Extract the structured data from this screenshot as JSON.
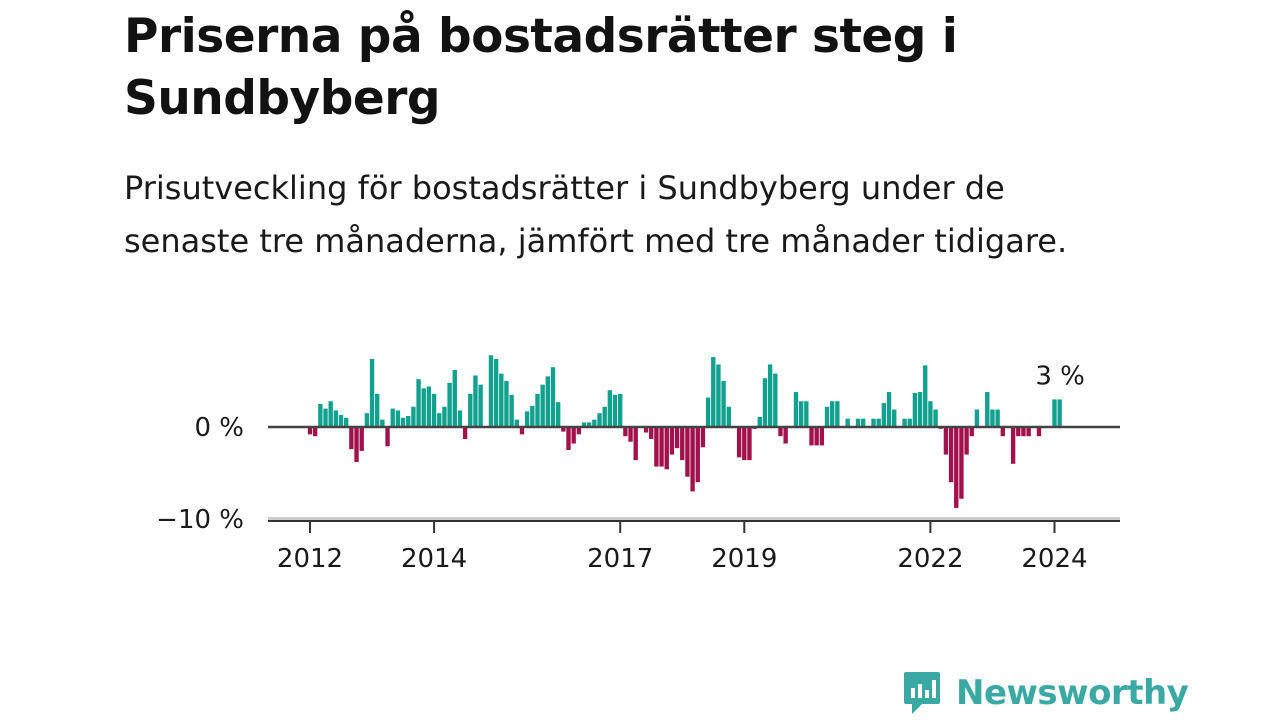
{
  "header": {
    "title": "Priserna på bostadsrätter steg i Sundbyberg",
    "subtitle": "Prisutveckling för bostadsrätter i Sundbyberg under de senaste tre månaderna, jämfört med tre månader tidigare."
  },
  "brand": {
    "name": "Newsworthy",
    "color": "#3aa9a4"
  },
  "chart_data": {
    "type": "bar",
    "title": "Priserna på bostadsrätter steg i Sundbyberg",
    "subtitle": "Prisutveckling för bostadsrätter i Sundbyberg under de senaste tre månaderna, jämfört med tre månader tidigare.",
    "xlabel": "",
    "ylabel": "",
    "x_start": "2012-01",
    "x_ticks": [
      "2012",
      "2014",
      "2017",
      "2019",
      "2022",
      "2024"
    ],
    "y_ticks": [
      0,
      -10
    ],
    "y_tick_labels": [
      "0 %",
      "−10 %"
    ],
    "ylim": [
      -10.3,
      8.5
    ],
    "colors": {
      "positive": "#12a08f",
      "negative": "#a2114b",
      "zero_line": "#444444",
      "baseline": "#cccccc"
    },
    "last_value_label": "3 %",
    "values": [
      -0.8,
      -1,
      2.5,
      2,
      2.8,
      1.8,
      1.3,
      1,
      -2.4,
      -3.8,
      -2.6,
      1.5,
      7.4,
      3.6,
      0.8,
      -2.1,
      2,
      1.8,
      1,
      1.2,
      2.2,
      5.2,
      4.2,
      4.4,
      3.6,
      1.5,
      2.2,
      4.8,
      6.2,
      1.8,
      -1.3,
      3.6,
      5.6,
      4.6,
      0,
      7.8,
      7.4,
      5.8,
      5,
      3.5,
      0.8,
      -0.8,
      1.7,
      2.3,
      3.6,
      4.6,
      5.5,
      6.5,
      2.7,
      -0.5,
      -2.5,
      -1.8,
      -0.8,
      0.5,
      0.5,
      0.8,
      1.5,
      2.2,
      4,
      3.5,
      3.6,
      -1,
      -1.6,
      -3.6,
      0,
      -0.6,
      -1.3,
      -4.3,
      -4.3,
      -4.6,
      -3,
      -2.3,
      -3.6,
      -5.4,
      -7,
      -6,
      -2.2,
      3.2,
      7.6,
      6.8,
      5,
      2.2,
      0,
      -3.3,
      -3.6,
      -3.6,
      -0.2,
      1.1,
      5.3,
      6.8,
      5.8,
      -1,
      -1.8,
      0,
      3.8,
      2.8,
      2.8,
      -2,
      -2,
      -2,
      2.2,
      2.8,
      2.8,
      0,
      0.9,
      0,
      0.9,
      0.9,
      0,
      0.9,
      0.9,
      2.6,
      3.8,
      1.9,
      0,
      0.9,
      0.9,
      3.7,
      3.8,
      6.7,
      2.8,
      1.9,
      -0.2,
      -3,
      -6,
      -8.8,
      -7.8,
      -3,
      -1,
      1.9,
      0,
      3.8,
      1.9,
      1.9,
      -1,
      0,
      -4,
      -1,
      -1,
      -1,
      0,
      -1,
      0,
      0,
      3,
      3
    ]
  }
}
